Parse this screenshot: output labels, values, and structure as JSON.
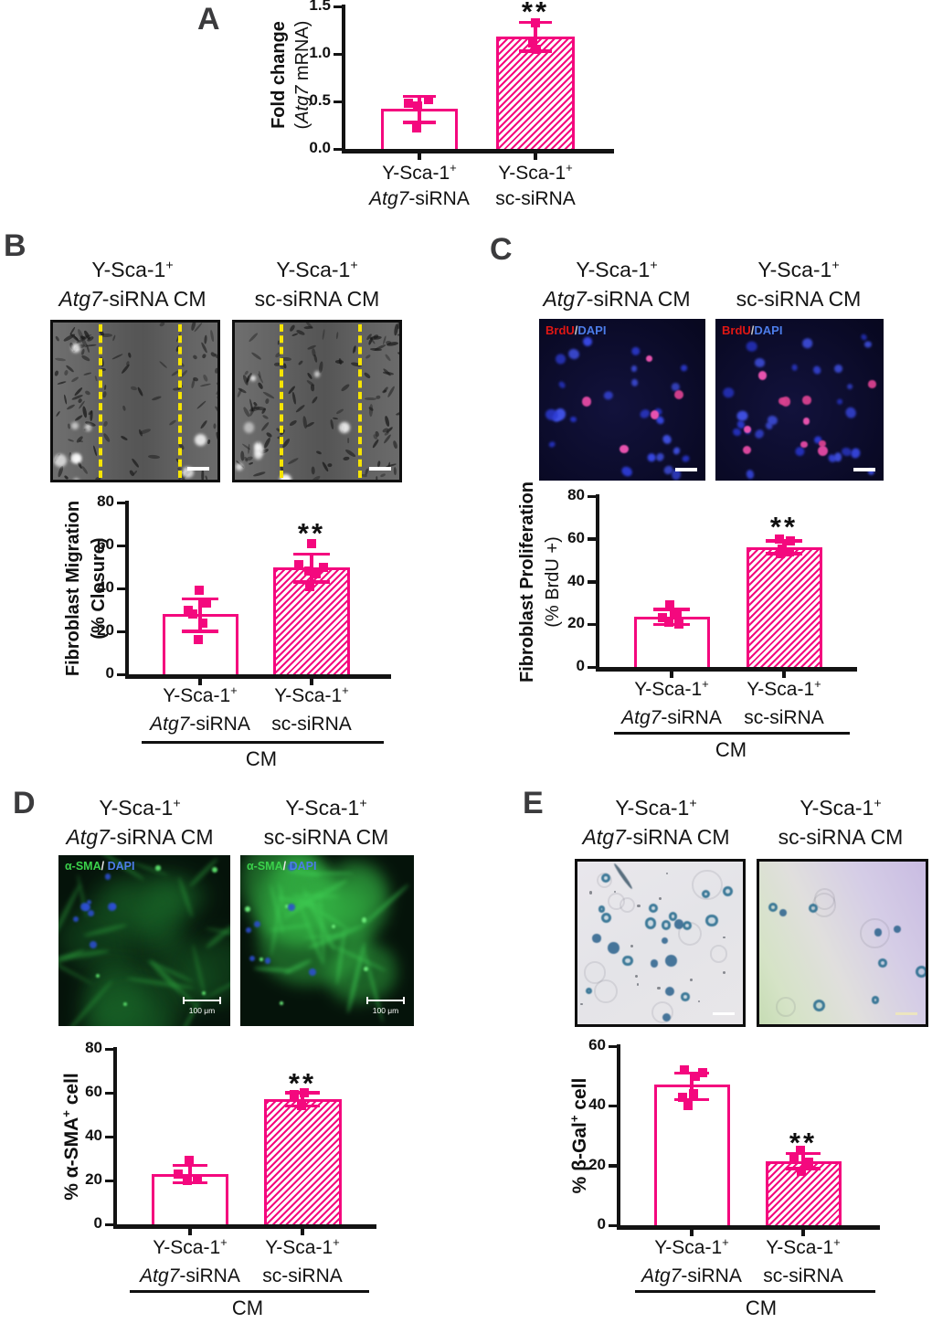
{
  "colors": {
    "pink": "#F4087E",
    "axis": "#131313",
    "panel_letter": "#3B3B3D",
    "stars": "#101010",
    "dash_yellow": "#F6E400",
    "scalebar_white": "#FFFFFF"
  },
  "panels": {
    "A": {
      "letter": "A"
    },
    "B": {
      "letter": "B",
      "images": [
        {
          "title": "atg7_cm",
          "kind": "phase-contrast scratch wound"
        },
        {
          "title": "sc_cm",
          "kind": "phase-contrast scratch wound"
        }
      ]
    },
    "C": {
      "letter": "C",
      "images": [
        {
          "title": "atg7_cm",
          "overlay": "brdu_dapi",
          "kind": "BrdU/DAPI fluorescence"
        },
        {
          "title": "sc_cm",
          "overlay": "brdu_dapi",
          "kind": "BrdU/DAPI fluorescence"
        }
      ]
    },
    "D": {
      "letter": "D",
      "images": [
        {
          "title": "atg7_cm",
          "overlay": "sma_dapi",
          "scalebar_label": "100 μm",
          "kind": "α-SMA/DAPI fluorescence"
        },
        {
          "title": "sc_cm",
          "overlay": "sma_dapi",
          "scalebar_label": "100 μm",
          "kind": "α-SMA/DAPI fluorescence"
        }
      ]
    },
    "E": {
      "letter": "E",
      "images": [
        {
          "title": "atg7_cm",
          "kind": "β-Gal staining brightfield"
        },
        {
          "title": "sc_cm",
          "kind": "β-Gal staining brightfield"
        }
      ]
    }
  },
  "condition_labels": {
    "atg7": {
      "line1": "Y-Sca-1",
      "sup": "+",
      "italic": "Atg7",
      "rest": "-siRNA"
    },
    "sc": {
      "line1": "Y-Sca-1",
      "sup": "+",
      "italic": "",
      "rest": "sc-siRNA"
    }
  },
  "image_titles": {
    "atg7_cm": {
      "line1": "Y-Sca-1",
      "sup": "+",
      "italic": "Atg7",
      "rest": "-siRNA CM"
    },
    "sc_cm": {
      "line1": "Y-Sca-1",
      "sup": "+",
      "italic": "",
      "rest": "sc-siRNA CM"
    }
  },
  "overlays": {
    "brdu_dapi": [
      {
        "text": "BrdU",
        "color": "#E01714"
      },
      {
        "text": "/",
        "color": "#C8C8C8"
      },
      {
        "text": "DAPI",
        "color": "#4C7CE8"
      }
    ],
    "sma_dapi": [
      {
        "text": "α-SMA",
        "color": "#3BD14B"
      },
      {
        "text": "/ ",
        "color": "#E8E8E8"
      },
      {
        "text": "DAPI",
        "color": "#4C7CE8"
      }
    ]
  },
  "chart_data": [
    {
      "id": "A",
      "type": "bar",
      "ylabel_lines": [
        {
          "text": "Fold change",
          "bold": true
        },
        {
          "pre": "(",
          "italic": "Atg7",
          "post": " mRNA)",
          "bold": false
        }
      ],
      "ylim": [
        0,
        1.5
      ],
      "yticks": [
        "0.0",
        "0.5",
        "1.0",
        "1.5"
      ],
      "categories": [
        "Y-Sca-1+ Atg7-siRNA",
        "Y-Sca-1+ sc-siRNA"
      ],
      "values": [
        0.42,
        1.18
      ],
      "sd_upper": [
        0.55,
        1.33
      ],
      "sd_lower": [
        0.28,
        1.03
      ],
      "points": [
        [
          0.48,
          0.52,
          0.45,
          0.22
        ],
        [
          1.33,
          1.12,
          1.05
        ]
      ],
      "significance": [
        null,
        "**"
      ],
      "bar_styles": [
        "open",
        "hatched"
      ],
      "group_label": null
    },
    {
      "id": "B",
      "type": "bar",
      "ylabel_lines": [
        {
          "text": "Fibroblast Migration",
          "bold": true
        },
        {
          "text": "(% Closure)",
          "bold": true
        }
      ],
      "ylim": [
        0,
        80
      ],
      "yticks": [
        "0",
        "20",
        "40",
        "60",
        "80"
      ],
      "categories": [
        "Y-Sca-1+ Atg7-siRNA",
        "Y-Sca-1+ sc-siRNA"
      ],
      "values": [
        28,
        50
      ],
      "sd_upper": [
        35,
        56
      ],
      "sd_lower": [
        20,
        43
      ],
      "points": [
        [
          39,
          33,
          30,
          28,
          24,
          16
        ],
        [
          61,
          51,
          50,
          48,
          47,
          41
        ]
      ],
      "significance": [
        null,
        "**"
      ],
      "bar_styles": [
        "open",
        "hatched"
      ],
      "group_label": "CM"
    },
    {
      "id": "C",
      "type": "bar",
      "ylabel_lines": [
        {
          "text": "Fibroblast Proliferation",
          "bold": true
        },
        {
          "text": "(% BrdU +)",
          "bold": false
        }
      ],
      "ylim": [
        0,
        80
      ],
      "yticks": [
        "0",
        "20",
        "40",
        "60",
        "80"
      ],
      "categories": [
        "Y-Sca-1+ Atg7-siRNA",
        "Y-Sca-1+ sc-siRNA"
      ],
      "values": [
        23.5,
        56
      ],
      "sd_upper": [
        27,
        59
      ],
      "sd_lower": [
        20,
        53
      ],
      "points": [
        [
          29,
          25,
          23,
          21,
          20
        ],
        [
          60,
          59,
          55,
          54,
          53
        ]
      ],
      "significance": [
        null,
        "**"
      ],
      "bar_styles": [
        "open",
        "hatched"
      ],
      "group_label": "CM"
    },
    {
      "id": "D",
      "type": "bar",
      "ylabel_lines": [
        {
          "pre": "% α-SMA",
          "sup": "+",
          "post": " cell",
          "bold": true
        }
      ],
      "ylim": [
        0,
        80
      ],
      "yticks": [
        "0",
        "20",
        "40",
        "60",
        "80"
      ],
      "categories": [
        "Y-Sca-1+ Atg7-siRNA",
        "Y-Sca-1+ sc-siRNA"
      ],
      "values": [
        23,
        57
      ],
      "sd_upper": [
        27,
        60
      ],
      "sd_lower": [
        19,
        54
      ],
      "points": [
        [
          29,
          23,
          21,
          20
        ],
        [
          60,
          59,
          54
        ]
      ],
      "significance": [
        null,
        "**"
      ],
      "bar_styles": [
        "open",
        "hatched"
      ],
      "group_label": "CM"
    },
    {
      "id": "E",
      "type": "bar",
      "ylabel_lines": [
        {
          "pre": "% β-Gal",
          "sup": "+",
          "post": " cell",
          "bold": true
        }
      ],
      "ylim": [
        0,
        60
      ],
      "yticks": [
        "0",
        "20",
        "40",
        "60"
      ],
      "categories": [
        "Y-Sca-1+ Atg7-siRNA",
        "Y-Sca-1+ sc-siRNA"
      ],
      "values": [
        47,
        21.5
      ],
      "sd_upper": [
        51,
        24
      ],
      "sd_lower": [
        42,
        19
      ],
      "points": [
        [
          52,
          51,
          50,
          44,
          43,
          40
        ],
        [
          25,
          22,
          21,
          18
        ]
      ],
      "significance": [
        null,
        "**"
      ],
      "bar_styles": [
        "open",
        "hatched"
      ],
      "group_label": "CM"
    }
  ]
}
